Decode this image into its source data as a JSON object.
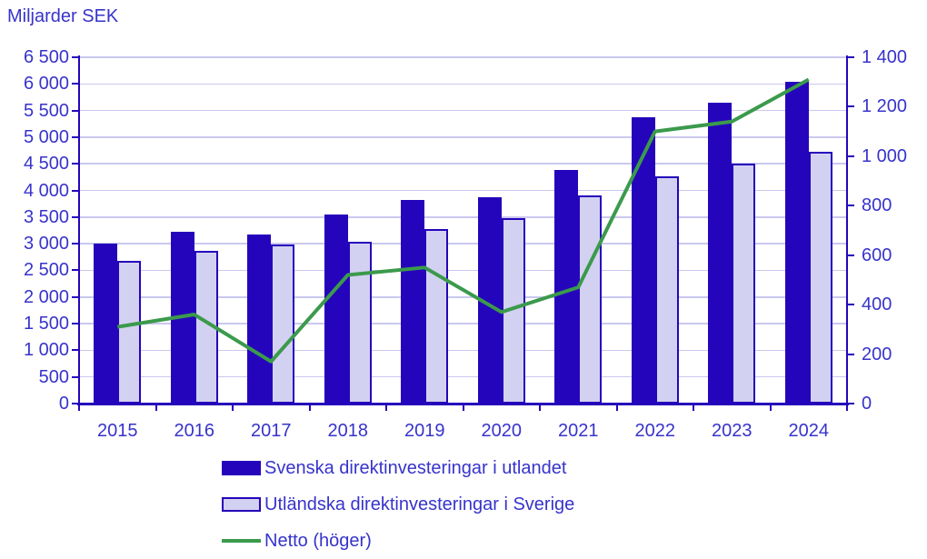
{
  "title": "Miljarder SEK",
  "colors": {
    "bar_dark_blue": "#2505bb",
    "bar_light_fill": "#d3d1f1",
    "line_green": "#3b9a4c",
    "gridline": "#cac8ef",
    "text_blue": "#3733cb"
  },
  "chart_data": {
    "type": "bar",
    "title": "Miljarder SEK",
    "categories": [
      "2015",
      "2016",
      "2017",
      "2018",
      "2019",
      "2020",
      "2021",
      "2022",
      "2023",
      "2024"
    ],
    "series": [
      {
        "name": "Svenska direktinvesteringar i utlandet",
        "type": "bar",
        "axis": "left",
        "values": [
          3010,
          3220,
          3170,
          3550,
          3830,
          3870,
          4390,
          5380,
          5650,
          6040
        ]
      },
      {
        "name": "Utländska direktinvesteringar i Sverige",
        "type": "bar",
        "axis": "left",
        "values": [
          2670,
          2870,
          2990,
          3040,
          3270,
          3480,
          3900,
          4270,
          4500,
          4730
        ]
      },
      {
        "name": "Netto (höger)",
        "type": "line",
        "axis": "right",
        "values": [
          310,
          360,
          170,
          520,
          550,
          370,
          470,
          1100,
          1140,
          1310
        ]
      }
    ],
    "left_axis": {
      "min": 0,
      "max": 6500,
      "step": 500,
      "tick_labels": [
        "0",
        "500",
        "1 000",
        "1 500",
        "2 000",
        "2 500",
        "3 000",
        "3 500",
        "4 000",
        "4 500",
        "5 000",
        "5 500",
        "6 000",
        "6 500"
      ]
    },
    "right_axis": {
      "min": 0,
      "max": 1400,
      "step": 200,
      "tick_labels": [
        "0",
        "200",
        "400",
        "600",
        "800",
        "1 000",
        "1 200",
        "1 400"
      ]
    },
    "grid": true,
    "legend_position": "bottom"
  },
  "legend": {
    "items": [
      {
        "label": "Svenska direktinvesteringar i utlandet",
        "swatch": "filled-bar"
      },
      {
        "label": "Utländska direktinvesteringar i Sverige",
        "swatch": "outlined-bar"
      },
      {
        "label": "Netto (höger)",
        "swatch": "line"
      }
    ]
  }
}
